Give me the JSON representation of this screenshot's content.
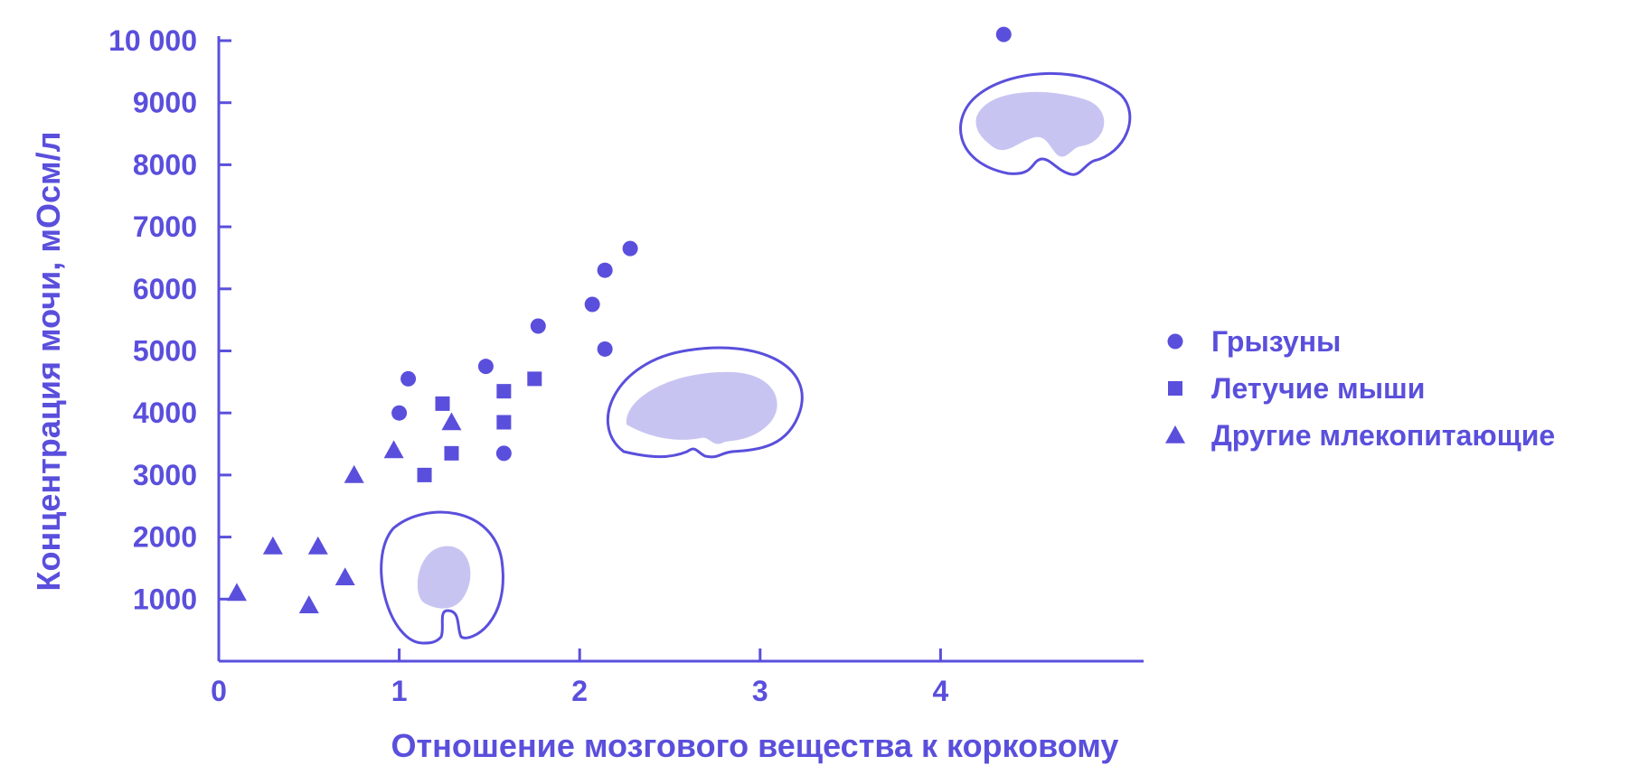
{
  "chart_data": {
    "type": "scatter",
    "title": "",
    "xlabel": "Отношение мозгового вещества к корковому",
    "ylabel": "Концентрация мочи, мОсм/л",
    "xlim": [
      0,
      5.1
    ],
    "ylim": [
      0,
      10500
    ],
    "x_ticks": [
      {
        "value": 0,
        "label": "0"
      },
      {
        "value": 1,
        "label": "1"
      },
      {
        "value": 2,
        "label": "2"
      },
      {
        "value": 3,
        "label": "3"
      },
      {
        "value": 4,
        "label": "4"
      }
    ],
    "y_ticks": [
      {
        "value": 1000,
        "label": "1000"
      },
      {
        "value": 2000,
        "label": "2000"
      },
      {
        "value": 3000,
        "label": "3000"
      },
      {
        "value": 4000,
        "label": "4000"
      },
      {
        "value": 5000,
        "label": "5000"
      },
      {
        "value": 6000,
        "label": "6000"
      },
      {
        "value": 7000,
        "label": "7000"
      },
      {
        "value": 8000,
        "label": "8000"
      },
      {
        "value": 9000,
        "label": "9000"
      },
      {
        "value": 10000,
        "label": "10 000"
      }
    ],
    "grid": false,
    "legend_position": "right",
    "color": "#5a4fdc",
    "fill_color": "#c8c4f2",
    "series": [
      {
        "name": "Грызуны",
        "marker": "circle",
        "points": [
          {
            "x": 1.05,
            "y": 4550
          },
          {
            "x": 1.0,
            "y": 4000
          },
          {
            "x": 1.48,
            "y": 4750
          },
          {
            "x": 1.58,
            "y": 3350
          },
          {
            "x": 1.77,
            "y": 5400
          },
          {
            "x": 2.07,
            "y": 5750
          },
          {
            "x": 2.14,
            "y": 6300
          },
          {
            "x": 2.28,
            "y": 6650
          },
          {
            "x": 2.14,
            "y": 5030
          },
          {
            "x": 4.35,
            "y": 10100
          }
        ]
      },
      {
        "name": "Летучие мыши",
        "marker": "square",
        "points": [
          {
            "x": 1.14,
            "y": 3000
          },
          {
            "x": 1.24,
            "y": 4150
          },
          {
            "x": 1.29,
            "y": 3350
          },
          {
            "x": 1.58,
            "y": 4350
          },
          {
            "x": 1.58,
            "y": 3850
          },
          {
            "x": 1.75,
            "y": 4550
          }
        ]
      },
      {
        "name": "Другие млекопитающие",
        "marker": "triangle",
        "points": [
          {
            "x": 0.1,
            "y": 1100
          },
          {
            "x": 0.3,
            "y": 1850
          },
          {
            "x": 0.5,
            "y": 900
          },
          {
            "x": 0.55,
            "y": 1850
          },
          {
            "x": 0.7,
            "y": 1350
          },
          {
            "x": 0.75,
            "y": 3000
          },
          {
            "x": 0.97,
            "y": 3400
          },
          {
            "x": 1.29,
            "y": 3850
          }
        ]
      }
    ]
  }
}
